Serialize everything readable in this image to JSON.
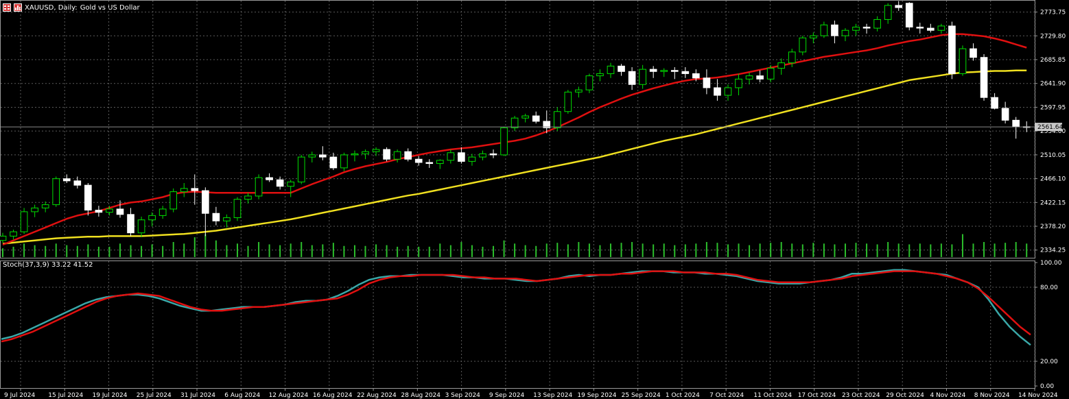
{
  "header": {
    "symbol": "XAUUSD, Daily:",
    "description": "Gold vs US Dollar",
    "icons": [
      "chart-window-icon",
      "indicator-icon"
    ]
  },
  "colors": {
    "background": "#000000",
    "grid": "#5c5c5c",
    "bull_candle": "#000000",
    "bear_candle": "#ffffff",
    "wick_up": "#00e000",
    "wick_down": "#ffffff",
    "ma_fast": "#e01010",
    "ma_slow": "#f0e020",
    "volume": "#2cbf2c",
    "stoch_main": "#3aa8a8",
    "stoch_signal": "#e01010",
    "axis_text": "#ffffff"
  },
  "chart_data": [
    {
      "type": "candlestick",
      "symbol": "XAUUSD",
      "timeframe": "Daily",
      "title": "XAUUSD, Daily:  Gold vs US Dollar",
      "y_ticks": [
        2773.75,
        2729.8,
        2685.85,
        2641.9,
        2597.95,
        2554.0,
        2510.05,
        2466.1,
        2422.15,
        2378.2,
        2334.25
      ],
      "y_tick_labels": [
        "2773.75",
        "2729.80",
        "2685.85",
        "2641.90",
        "2597.95",
        "2554.00",
        "2510.05",
        "2466.10",
        "2422.15",
        "2378.20",
        "2334.25"
      ],
      "ylim": [
        2320,
        2796
      ],
      "current_price": 2561.64,
      "current_price_label": "2561.64",
      "x_tick_labels": [
        "9 Jul 2024",
        "15 Jul 2024",
        "19 Jul 2024",
        "25 Jul 2024",
        "31 Jul 2024",
        "6 Aug 2024",
        "12 Aug 2024",
        "16 Aug 2024",
        "22 Aug 2024",
        "28 Aug 2024",
        "3 Sep 2024",
        "9 Sep 2024",
        "13 Sep 2024",
        "19 Sep 2024",
        "25 Sep 2024",
        "1 Oct 2024",
        "7 Oct 2024",
        "11 Oct 2024",
        "17 Oct 2024",
        "23 Oct 2024",
        "29 Oct 2024",
        "4 Nov 2024",
        "8 Nov 2024",
        "14 Nov 2024"
      ],
      "ohlc": [
        [
          2352,
          2366,
          2348,
          2360
        ],
        [
          2360,
          2372,
          2354,
          2368
        ],
        [
          2368,
          2412,
          2364,
          2405
        ],
        [
          2405,
          2418,
          2395,
          2412
        ],
        [
          2412,
          2424,
          2404,
          2418
        ],
        [
          2418,
          2470,
          2414,
          2466
        ],
        [
          2466,
          2474,
          2458,
          2462
        ],
        [
          2462,
          2470,
          2448,
          2454
        ],
        [
          2454,
          2458,
          2398,
          2408
        ],
        [
          2408,
          2416,
          2396,
          2404
        ],
        [
          2404,
          2416,
          2398,
          2410
        ],
        [
          2410,
          2426,
          2394,
          2400
        ],
        [
          2400,
          2412,
          2360,
          2366
        ],
        [
          2366,
          2396,
          2358,
          2390
        ],
        [
          2390,
          2404,
          2378,
          2398
        ],
        [
          2398,
          2416,
          2392,
          2410
        ],
        [
          2410,
          2448,
          2404,
          2442
        ],
        [
          2442,
          2458,
          2432,
          2448
        ],
        [
          2448,
          2474,
          2418,
          2444
        ],
        [
          2444,
          2450,
          2360,
          2402
        ],
        [
          2402,
          2414,
          2380,
          2388
        ],
        [
          2388,
          2400,
          2376,
          2394
        ],
        [
          2394,
          2432,
          2388,
          2428
        ],
        [
          2428,
          2440,
          2420,
          2434
        ],
        [
          2434,
          2474,
          2428,
          2468
        ],
        [
          2468,
          2476,
          2460,
          2464
        ],
        [
          2464,
          2470,
          2446,
          2452
        ],
        [
          2452,
          2464,
          2432,
          2460
        ],
        [
          2460,
          2510,
          2456,
          2506
        ],
        [
          2506,
          2516,
          2496,
          2510
        ],
        [
          2510,
          2526,
          2500,
          2506
        ],
        [
          2506,
          2514,
          2482,
          2486
        ],
        [
          2486,
          2514,
          2480,
          2510
        ],
        [
          2510,
          2518,
          2498,
          2512
        ],
        [
          2512,
          2520,
          2502,
          2516
        ],
        [
          2516,
          2524,
          2508,
          2520
        ],
        [
          2520,
          2524,
          2498,
          2502
        ],
        [
          2502,
          2520,
          2496,
          2516
        ],
        [
          2516,
          2522,
          2498,
          2502
        ],
        [
          2502,
          2508,
          2490,
          2496
        ],
        [
          2496,
          2502,
          2486,
          2494
        ],
        [
          2494,
          2502,
          2484,
          2500
        ],
        [
          2500,
          2520,
          2494,
          2514
        ],
        [
          2514,
          2524,
          2494,
          2498
        ],
        [
          2498,
          2512,
          2490,
          2506
        ],
        [
          2506,
          2518,
          2500,
          2512
        ],
        [
          2512,
          2520,
          2504,
          2510
        ],
        [
          2510,
          2562,
          2508,
          2560
        ],
        [
          2560,
          2582,
          2554,
          2578
        ],
        [
          2578,
          2586,
          2570,
          2582
        ],
        [
          2582,
          2590,
          2568,
          2572
        ],
        [
          2572,
          2592,
          2550,
          2560
        ],
        [
          2560,
          2598,
          2554,
          2590
        ],
        [
          2590,
          2630,
          2586,
          2626
        ],
        [
          2626,
          2636,
          2616,
          2630
        ],
        [
          2630,
          2660,
          2624,
          2656
        ],
        [
          2656,
          2668,
          2646,
          2660
        ],
        [
          2660,
          2680,
          2652,
          2674
        ],
        [
          2674,
          2678,
          2656,
          2664
        ],
        [
          2664,
          2672,
          2630,
          2640
        ],
        [
          2640,
          2676,
          2632,
          2668
        ],
        [
          2668,
          2674,
          2652,
          2664
        ],
        [
          2664,
          2670,
          2654,
          2666
        ],
        [
          2666,
          2672,
          2650,
          2664
        ],
        [
          2664,
          2672,
          2652,
          2660
        ],
        [
          2660,
          2668,
          2646,
          2652
        ],
        [
          2652,
          2668,
          2622,
          2634
        ],
        [
          2634,
          2650,
          2610,
          2620
        ],
        [
          2620,
          2640,
          2610,
          2634
        ],
        [
          2634,
          2660,
          2620,
          2650
        ],
        [
          2650,
          2662,
          2640,
          2656
        ],
        [
          2656,
          2666,
          2644,
          2650
        ],
        [
          2650,
          2676,
          2644,
          2670
        ],
        [
          2670,
          2688,
          2658,
          2680
        ],
        [
          2680,
          2706,
          2672,
          2700
        ],
        [
          2700,
          2730,
          2694,
          2726
        ],
        [
          2726,
          2736,
          2716,
          2730
        ],
        [
          2730,
          2756,
          2726,
          2750
        ],
        [
          2750,
          2758,
          2716,
          2730
        ],
        [
          2730,
          2744,
          2720,
          2740
        ],
        [
          2740,
          2752,
          2730,
          2746
        ],
        [
          2746,
          2752,
          2734,
          2744
        ],
        [
          2744,
          2766,
          2738,
          2760
        ],
        [
          2760,
          2790,
          2752,
          2786
        ],
        [
          2786,
          2794,
          2776,
          2782
        ],
        [
          2790,
          2792,
          2740,
          2746
        ],
        [
          2746,
          2754,
          2734,
          2744
        ],
        [
          2744,
          2752,
          2736,
          2740
        ],
        [
          2740,
          2752,
          2734,
          2748
        ],
        [
          2748,
          2756,
          2650,
          2660
        ],
        [
          2660,
          2712,
          2656,
          2706
        ],
        [
          2706,
          2716,
          2684,
          2690
        ],
        [
          2690,
          2696,
          2610,
          2616
        ],
        [
          2616,
          2624,
          2594,
          2596
        ],
        [
          2596,
          2608,
          2568,
          2574
        ],
        [
          2574,
          2580,
          2540,
          2562
        ],
        [
          2562,
          2572,
          2552,
          2561.64
        ]
      ],
      "ma_fast": [
        2344,
        2352,
        2360,
        2368,
        2376,
        2384,
        2392,
        2398,
        2402,
        2406,
        2412,
        2418,
        2422,
        2424,
        2428,
        2432,
        2438,
        2441,
        2442,
        2441,
        2440,
        2440,
        2440,
        2440,
        2440,
        2440,
        2440,
        2440,
        2448,
        2456,
        2463,
        2470,
        2478,
        2484,
        2489,
        2493,
        2497,
        2502,
        2506,
        2510,
        2514,
        2517,
        2520,
        2522,
        2524,
        2527,
        2530,
        2533,
        2536,
        2540,
        2546,
        2553,
        2561,
        2570,
        2579,
        2589,
        2598,
        2606,
        2614,
        2621,
        2627,
        2633,
        2638,
        2643,
        2647,
        2650,
        2651,
        2653,
        2656,
        2659,
        2663,
        2667,
        2671,
        2675,
        2679,
        2683,
        2687,
        2691,
        2694,
        2697,
        2700,
        2703,
        2707,
        2712,
        2716,
        2720,
        2723,
        2727,
        2731,
        2733,
        2733,
        2731,
        2729,
        2725,
        2720,
        2714,
        2708
      ],
      "ma_slow": [
        2346,
        2348,
        2350,
        2352,
        2354,
        2356,
        2357,
        2358,
        2359,
        2359,
        2360,
        2360,
        2360,
        2360,
        2361,
        2362,
        2363,
        2364,
        2366,
        2368,
        2370,
        2373,
        2376,
        2379,
        2382,
        2385,
        2388,
        2391,
        2395,
        2399,
        2403,
        2407,
        2411,
        2415,
        2419,
        2423,
        2427,
        2431,
        2435,
        2438,
        2442,
        2446,
        2450,
        2454,
        2458,
        2462,
        2466,
        2470,
        2474,
        2478,
        2482,
        2486,
        2490,
        2494,
        2498,
        2502,
        2506,
        2511,
        2516,
        2521,
        2526,
        2531,
        2536,
        2540,
        2544,
        2548,
        2553,
        2558,
        2563,
        2568,
        2573,
        2578,
        2583,
        2588,
        2593,
        2598,
        2603,
        2608,
        2613,
        2618,
        2623,
        2628,
        2633,
        2638,
        2643,
        2648,
        2651,
        2654,
        2657,
        2660,
        2662,
        2663,
        2664,
        2665,
        2665,
        2666,
        2666
      ],
      "volume": [
        12,
        14,
        18,
        16,
        15,
        18,
        16,
        15,
        17,
        14,
        14,
        18,
        16,
        15,
        17,
        15,
        20,
        18,
        26,
        30,
        22,
        16,
        18,
        15,
        20,
        17,
        16,
        18,
        20,
        16,
        17,
        19,
        15,
        16,
        15,
        17,
        16,
        14,
        15,
        14,
        14,
        18,
        16,
        20,
        16,
        14,
        15,
        22,
        18,
        16,
        15,
        18,
        19,
        17,
        20,
        18,
        16,
        18,
        19,
        20,
        18,
        17,
        18,
        16,
        17,
        18,
        20,
        19,
        17,
        18,
        16,
        18,
        19,
        20,
        18,
        17,
        19,
        18,
        17,
        18,
        19,
        18,
        17,
        20,
        18,
        17,
        18,
        17,
        18,
        17,
        30,
        18,
        20,
        18,
        19,
        20,
        18
      ],
      "volume_scale_max": 40
    },
    {
      "type": "line",
      "title": "Stoch(37,3,9) 33.22 41.52",
      "indicator": "Stoch(37,3,9)",
      "values_label": "33.22 41.52",
      "last_main": 33.22,
      "last_signal": 41.52,
      "y_ticks": [
        100,
        80,
        20,
        0
      ],
      "y_tick_labels": [
        "100.00",
        "80.00",
        "20.00",
        "0.00"
      ],
      "ylim": [
        0,
        100
      ],
      "series": [
        {
          "name": "main",
          "values": [
            38,
            40,
            43,
            47,
            51,
            55,
            59,
            63,
            67,
            70,
            72,
            73,
            74,
            74,
            73,
            71,
            68,
            65,
            63,
            61,
            61,
            62,
            63,
            64,
            64,
            64,
            65,
            66,
            68,
            69,
            69,
            70,
            73,
            77,
            82,
            86,
            88,
            89,
            89,
            90,
            90,
            90,
            90,
            89,
            88,
            88,
            87,
            87,
            87,
            86,
            85,
            85,
            86,
            87,
            89,
            90,
            89,
            90,
            90,
            91,
            92,
            93,
            93,
            93,
            92,
            92,
            92,
            91,
            91,
            90,
            89,
            87,
            85,
            84,
            83,
            83,
            83,
            84,
            85,
            86,
            88,
            91,
            91,
            92,
            93,
            94,
            94,
            93,
            92,
            91,
            90,
            87,
            84,
            80,
            70,
            58,
            48,
            40,
            33.22
          ]
        },
        {
          "name": "signal",
          "values": [
            36,
            38,
            41,
            44,
            48,
            52,
            56,
            60,
            64,
            68,
            71,
            73,
            74,
            75,
            74,
            73,
            70,
            67,
            64,
            62,
            61,
            61,
            62,
            63,
            64,
            64,
            65,
            66,
            67,
            68,
            69,
            70,
            71,
            74,
            78,
            83,
            86,
            88,
            89,
            89,
            90,
            90,
            90,
            90,
            89,
            88,
            88,
            87,
            87,
            87,
            86,
            85,
            86,
            87,
            88,
            89,
            90,
            90,
            90,
            91,
            91,
            92,
            93,
            93,
            93,
            92,
            92,
            92,
            91,
            91,
            90,
            88,
            86,
            85,
            84,
            84,
            84,
            84,
            85,
            86,
            87,
            89,
            90,
            91,
            92,
            93,
            93,
            93,
            92,
            91,
            89,
            87,
            84,
            79,
            72,
            64,
            56,
            48,
            41.52
          ]
        }
      ]
    }
  ]
}
